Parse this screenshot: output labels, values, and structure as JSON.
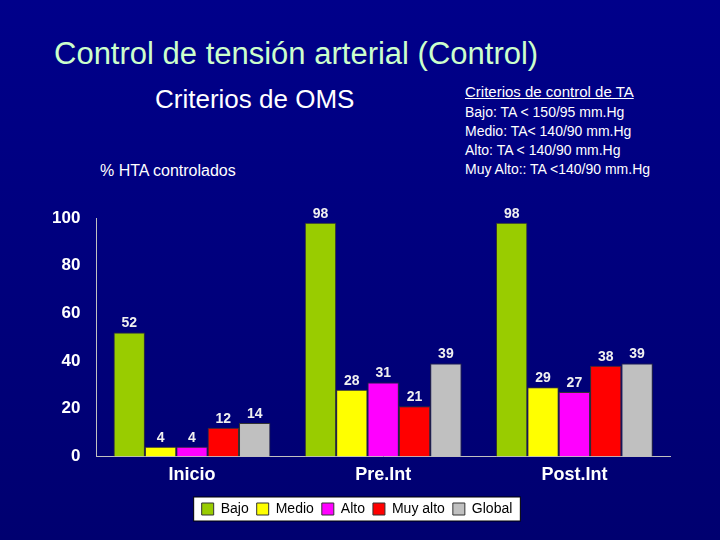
{
  "chart_data": {
    "type": "bar",
    "title": "Control de tensión arterial (Control)",
    "subtitle": "Criterios de OMS",
    "ylabel": "% HTA controlados",
    "annotations": {
      "title": "Criterios de control de TA",
      "lines": [
        "Bajo: TA < 150/95 mm.Hg",
        "Medio: TA< 140/90 mm.Hg",
        "Alto: TA < 140/90 mm.Hg",
        "Muy Alto:: TA <140/90 mm.Hg"
      ]
    },
    "categories": [
      "Inicio",
      "Pre.Int",
      "Post.Int"
    ],
    "series": [
      {
        "name": "Bajo",
        "color": "#99cc00",
        "values": [
          52,
          98,
          98
        ]
      },
      {
        "name": "Medio",
        "color": "#ffff00",
        "values": [
          4,
          28,
          29
        ]
      },
      {
        "name": "Alto",
        "color": "#ff00ff",
        "values": [
          4,
          31,
          27
        ]
      },
      {
        "name": "Muy alto",
        "color": "#ff0000",
        "values": [
          12,
          21,
          38
        ]
      },
      {
        "name": "Global",
        "color": "#c0c0c0",
        "values": [
          14,
          39,
          39
        ]
      }
    ],
    "ylim": [
      0,
      100
    ],
    "yticks": [
      0,
      20,
      40,
      60,
      80,
      100
    ],
    "grid": false,
    "legend": "bottom",
    "data_labels": true
  }
}
